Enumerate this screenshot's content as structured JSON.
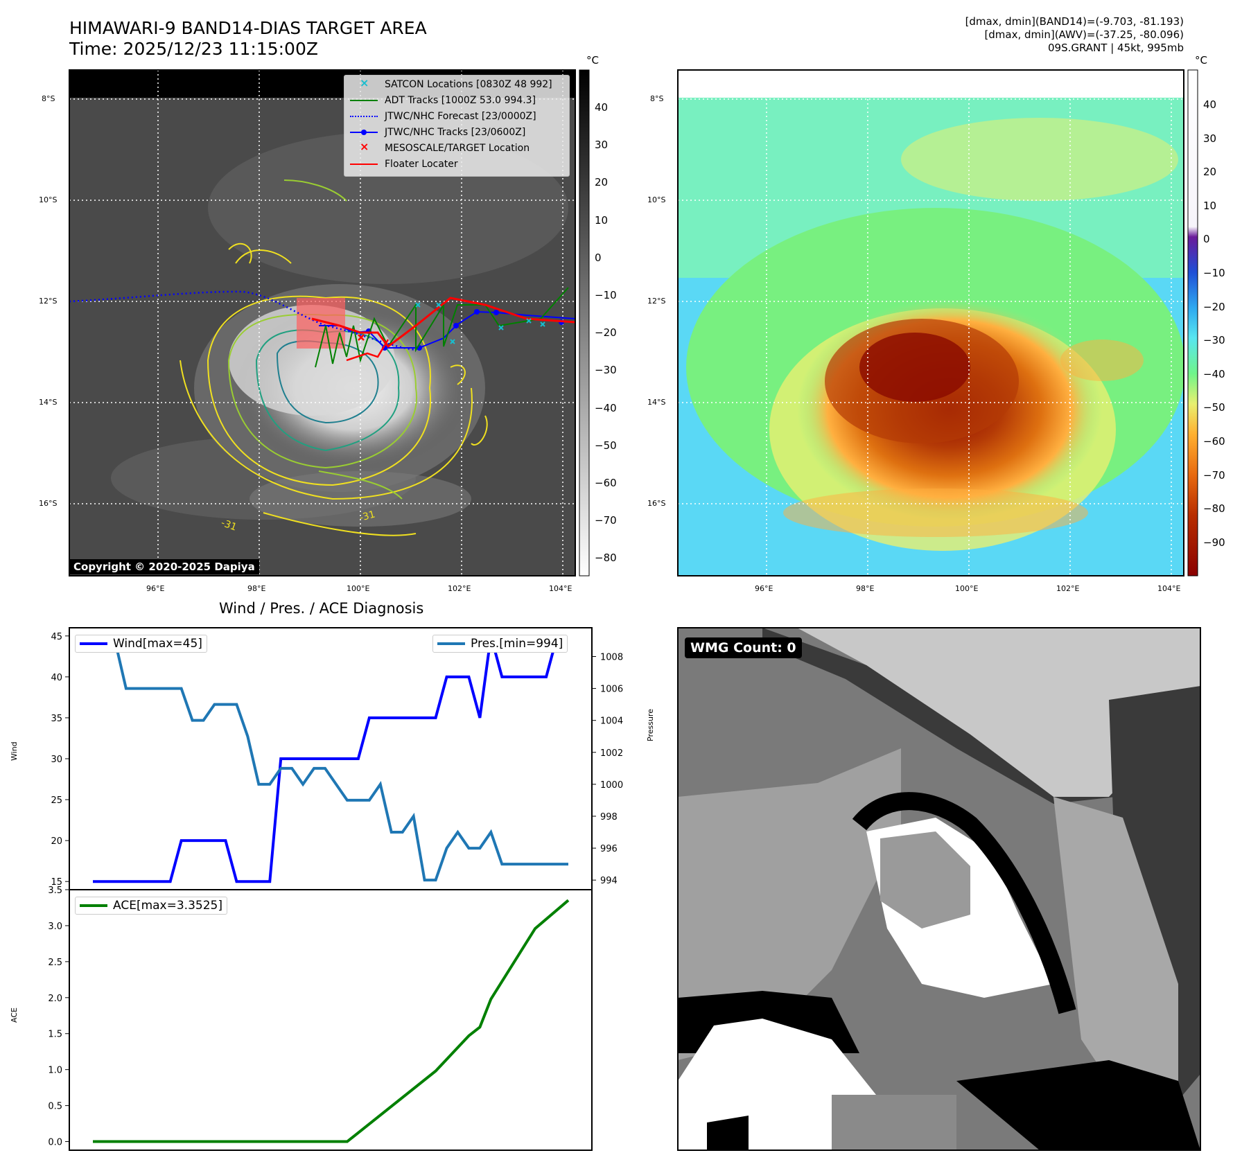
{
  "header": {
    "title_line1": "HIMAWARI-9 BAND14-DIAS TARGET AREA",
    "title_line2": "Time: 2025/12/23 11:15:00Z",
    "stat_line1": "[dmax, dmin](BAND14)=(-9.703, -81.193)",
    "stat_line2": "[dmax, dmin](AWV)=(-37.25, -80.096)",
    "stat_line3": "09S.GRANT | 45kt, 995mb"
  },
  "map": {
    "lat_labels": [
      "8°S",
      "10°S",
      "12°S",
      "14°S",
      "16°S"
    ],
    "lon_labels": [
      "96°E",
      "98°E",
      "100°E",
      "102°E",
      "104°E"
    ],
    "copyright": "Copyright © 2020-2025 Dapiya",
    "contour_label": "-31",
    "legend": [
      {
        "label": "SATCON Locations [0830Z 48 992]",
        "color": "#17becf",
        "icon": "cross-marker-icon"
      },
      {
        "label": "ADT Tracks [1000Z 53.0 994.3]",
        "color": "#008000",
        "icon": "solid-line-icon"
      },
      {
        "label": "JTWC/NHC Forecast [23/0000Z]",
        "color": "#0000ff",
        "icon": "dotted-line-icon"
      },
      {
        "label": "JTWC/NHC Tracks [23/0600Z]",
        "color": "#0000ff",
        "icon": "dot-line-icon"
      },
      {
        "label": "MESOSCALE/TARGET Location",
        "color": "#ff0000",
        "icon": "cross-marker-icon"
      },
      {
        "label": "Floater Locater",
        "color": "#ff0000",
        "icon": "solid-line-icon"
      }
    ]
  },
  "colorbars": {
    "unit": "°C",
    "gray_ticks": [
      "40",
      "30",
      "20",
      "10",
      "0",
      "−10",
      "−20",
      "−30",
      "−40",
      "−50",
      "−60",
      "−70",
      "−80"
    ],
    "color_ticks": [
      "40",
      "30",
      "20",
      "10",
      "0",
      "−10",
      "−20",
      "−30",
      "−40",
      "−50",
      "−60",
      "−70",
      "−80",
      "−90"
    ]
  },
  "wmg": {
    "label": "WMG Count: 0"
  },
  "chart_data": [
    {
      "type": "line",
      "title": "Wind / Pres. / ACE Diagnosis",
      "ylabel": "Wind",
      "y2label": "Pressure",
      "ylim": [
        14,
        46
      ],
      "y2lim": [
        993.4,
        1009.8
      ],
      "yticks": [
        15,
        20,
        25,
        30,
        35,
        40,
        45
      ],
      "y2ticks": [
        994,
        996,
        998,
        1000,
        1002,
        1004,
        1006,
        1008
      ],
      "series": [
        {
          "name": "Wind",
          "legend": "Wind[max=45]",
          "color": "#0000ff",
          "x": [
            0,
            7,
            8,
            12,
            13,
            16,
            17,
            24,
            25,
            31,
            32,
            34,
            35,
            36,
            37,
            41,
            42
          ],
          "values": [
            15,
            15,
            20,
            20,
            15,
            15,
            30,
            30,
            35,
            35,
            40,
            40,
            35,
            45,
            40,
            40,
            45
          ]
        },
        {
          "name": "Pressure",
          "legend": "Pres.[min=994]",
          "color": "#1f77b4",
          "x": [
            0,
            2,
            3,
            8,
            9,
            10,
            11,
            13,
            14,
            15,
            16,
            17,
            18,
            19,
            20,
            21,
            22,
            23,
            24,
            25,
            26,
            27,
            28,
            29,
            30,
            31,
            32,
            33,
            34,
            35,
            36,
            37,
            38,
            39,
            40,
            41,
            42,
            43
          ],
          "values": [
            1009,
            1009,
            1006,
            1006,
            1004,
            1004,
            1005,
            1005,
            1003,
            1000,
            1000,
            1001,
            1001,
            1000,
            1001,
            1001,
            1000,
            999,
            999,
            999,
            1000,
            997,
            997,
            998,
            994,
            994,
            996,
            997,
            996,
            996,
            997,
            995,
            995,
            995,
            995,
            995,
            995,
            995
          ]
        }
      ]
    },
    {
      "type": "line",
      "ylabel": "ACE",
      "ylim": [
        -0.12,
        3.5
      ],
      "yticks": [
        "0.0",
        "0.5",
        "1.0",
        "1.5",
        "2.0",
        "2.5",
        "3.0",
        "3.5"
      ],
      "series": [
        {
          "name": "ACE",
          "legend": "ACE[max=3.3525]",
          "color": "#008000",
          "x": [
            0,
            23,
            31,
            34,
            35,
            36,
            40,
            43
          ],
          "values": [
            0,
            0,
            0.98,
            1.47,
            1.59,
            1.98,
            2.96,
            3.3525
          ]
        }
      ]
    }
  ]
}
